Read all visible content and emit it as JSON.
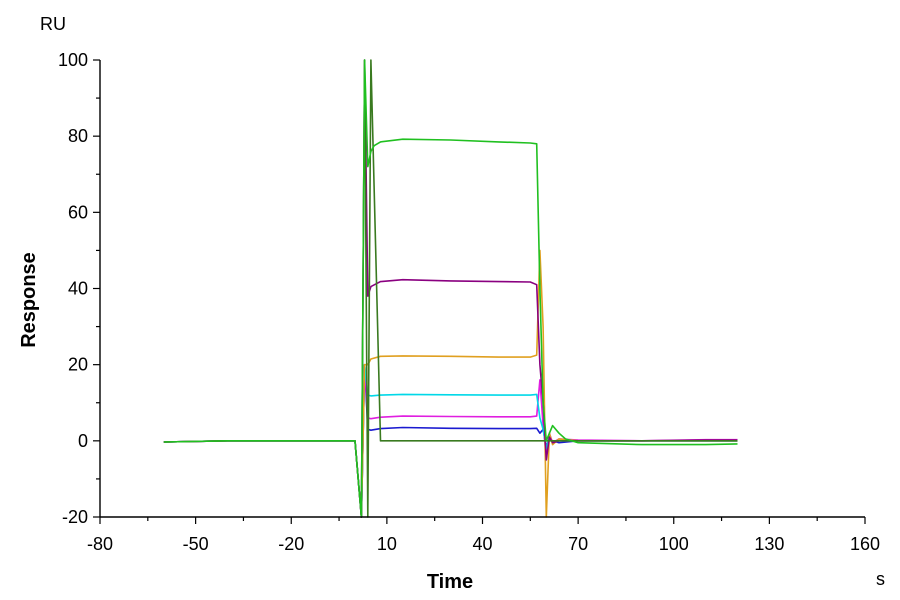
{
  "chart_data": {
    "type": "line",
    "title": "",
    "xlabel": "Time",
    "ylabel": "Response",
    "x_unit": "s",
    "y_unit": "RU",
    "xlim": [
      -80,
      160
    ],
    "ylim": [
      -20,
      100
    ],
    "x_ticks": [
      -80,
      -50,
      -20,
      10,
      40,
      70,
      100,
      130,
      160
    ],
    "y_ticks": [
      -20,
      0,
      20,
      40,
      60,
      80,
      100
    ],
    "grid": false,
    "legend": "none",
    "series": [
      {
        "color": "#1a1ad0",
        "x": [
          -60,
          -40,
          -20,
          0,
          2,
          3,
          4,
          5,
          8,
          15,
          30,
          45,
          55,
          57,
          58,
          59,
          60,
          61,
          62,
          64,
          70,
          90,
          110,
          120
        ],
        "y": [
          -0.3,
          0,
          0,
          0,
          -20,
          20,
          3,
          2.8,
          3.2,
          3.5,
          3.3,
          3.2,
          3.2,
          3.3,
          2,
          3,
          -1.5,
          0.5,
          0,
          -0.5,
          0,
          0,
          0,
          0
        ]
      },
      {
        "color": "#e01ee0",
        "x": [
          -60,
          -40,
          -20,
          0,
          2,
          3,
          4,
          5,
          8,
          15,
          30,
          45,
          55,
          57,
          58,
          59,
          60,
          61,
          62,
          64,
          70,
          90,
          110,
          120
        ],
        "y": [
          -0.3,
          0,
          0,
          0,
          -20,
          20,
          6,
          5.8,
          6.2,
          6.5,
          6.4,
          6.3,
          6.3,
          6.5,
          16,
          4,
          -4,
          2,
          -0.5,
          0.5,
          0.2,
          0,
          0.3,
          0.3
        ]
      },
      {
        "color": "#00d8e8",
        "x": [
          -60,
          -40,
          -20,
          0,
          2,
          3,
          4,
          5,
          8,
          15,
          30,
          45,
          55,
          57,
          58,
          59,
          60,
          61,
          62,
          64,
          70,
          90,
          110,
          120
        ],
        "y": [
          -0.3,
          0,
          0,
          0,
          -20,
          20,
          12,
          11.8,
          12,
          12.2,
          12.1,
          12,
          12,
          12.2,
          6,
          3,
          -2,
          1,
          -0.5,
          0,
          0,
          0,
          0,
          0
        ]
      },
      {
        "color": "#e0a020",
        "x": [
          -60,
          -40,
          -20,
          0,
          2,
          3,
          4,
          5,
          8,
          15,
          30,
          45,
          55,
          57,
          58,
          59,
          60,
          61,
          62,
          64,
          70,
          90,
          110,
          120
        ],
        "y": [
          -0.3,
          0,
          0,
          0,
          -20,
          20,
          20,
          21.5,
          22.2,
          22.3,
          22.2,
          22,
          22,
          22.5,
          50,
          30,
          -20,
          2,
          -1,
          0.5,
          0,
          0,
          0,
          0
        ]
      },
      {
        "color": "#8a0080",
        "x": [
          -60,
          -40,
          -20,
          0,
          2,
          3,
          4,
          5,
          8,
          15,
          30,
          45,
          55,
          57,
          58,
          59,
          60,
          61,
          62,
          64,
          70,
          90,
          110,
          120
        ],
        "y": [
          -0.3,
          0,
          0,
          0,
          -20,
          100,
          38,
          40.5,
          41.8,
          42.3,
          42,
          41.8,
          41.7,
          41,
          20,
          10,
          -5,
          1,
          -0.5,
          0,
          0,
          0,
          0.2,
          0.2
        ]
      },
      {
        "color": "#3a7a20",
        "x": [
          -60,
          -40,
          -20,
          0,
          2,
          3,
          4,
          5,
          8,
          15,
          30,
          45,
          55,
          57,
          58,
          59,
          60,
          61,
          62,
          64,
          70,
          90,
          110,
          120
        ],
        "y": [
          -0.3,
          0,
          0,
          0,
          -20,
          100,
          -20,
          100,
          0,
          0,
          0,
          0,
          0,
          0,
          0,
          0,
          0,
          0,
          0,
          0,
          0,
          0,
          0,
          0
        ]
      },
      {
        "color": "#20c020",
        "x": [
          -60,
          -40,
          -20,
          0,
          2,
          3,
          4,
          5,
          6,
          8,
          15,
          30,
          45,
          55,
          57,
          58,
          59,
          60,
          61,
          62,
          64,
          66,
          70,
          90,
          110,
          120
        ],
        "y": [
          -0.3,
          0,
          0,
          0,
          -20,
          100,
          72,
          76,
          77.5,
          78.5,
          79.2,
          79,
          78.5,
          78.2,
          78,
          40,
          10,
          0,
          2,
          4,
          2,
          0.5,
          -0.5,
          -1,
          -1,
          -0.8
        ]
      }
    ]
  }
}
